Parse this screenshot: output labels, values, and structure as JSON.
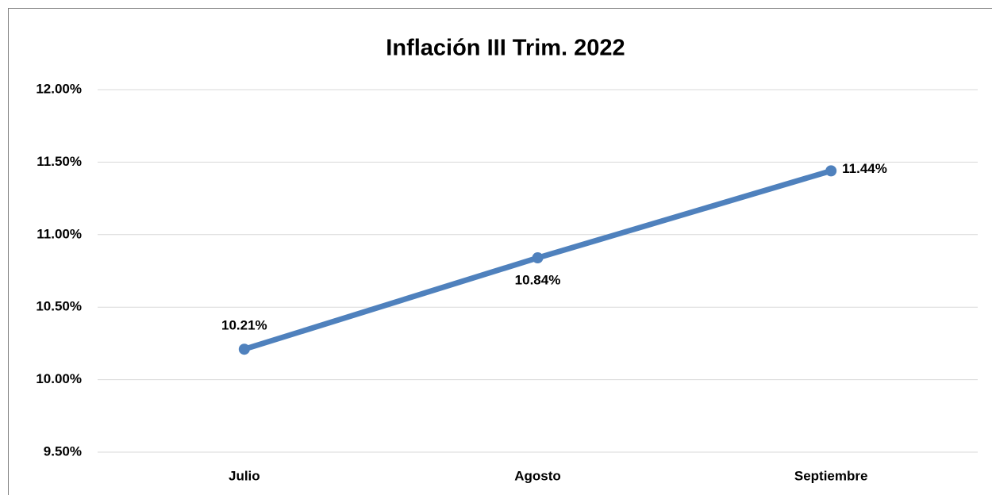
{
  "chart_data": {
    "type": "line",
    "title": "Inflación III Trim. 2022",
    "categories": [
      "Julio",
      "Agosto",
      "Septiembre"
    ],
    "series": [
      {
        "name": "Inflación",
        "color": "#4f81bd",
        "values": [
          10.21,
          10.84,
          11.44
        ],
        "value_labels": [
          "10.21%",
          "10.84%",
          "11.44%"
        ]
      }
    ],
    "ylim": [
      9.5,
      12
    ],
    "yticks": [
      {
        "value": 9.5,
        "label": "9.50%"
      },
      {
        "value": 10,
        "label": "10.00%"
      },
      {
        "value": 10.5,
        "label": "10.50%"
      },
      {
        "value": 11,
        "label": "11.00%"
      },
      {
        "value": 11.5,
        "label": "11.50%"
      },
      {
        "value": 12,
        "label": "12.00%"
      }
    ],
    "grid": true
  }
}
